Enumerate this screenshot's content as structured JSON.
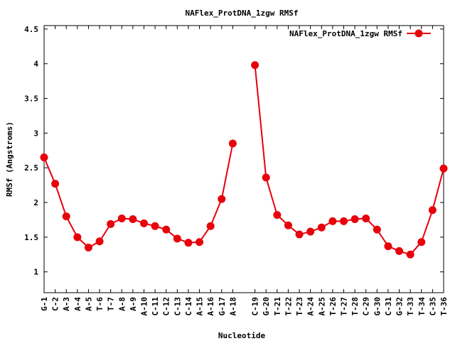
{
  "chart_data": {
    "type": "line",
    "title": "NAFlex_ProtDNA_1zgw RMSf",
    "xlabel": "Nucleotide",
    "ylabel": "RMSf (Angstroms)",
    "ylim": [
      0.7,
      4.55
    ],
    "yticks": [
      1,
      1.5,
      2,
      2.5,
      3,
      3.5,
      4,
      4.5
    ],
    "grid": false,
    "legend": "top-right",
    "color": "#e8000b",
    "series": [
      {
        "name": "NAFlex_ProtDNA_1zgw RMSf",
        "segments": [
          {
            "categories": [
              "G-1",
              "C-2",
              "A-3",
              "A-4",
              "A-5",
              "T-6",
              "T-7",
              "A-8",
              "A-9",
              "A-10",
              "C-11",
              "C-12",
              "C-13",
              "C-14",
              "A-15",
              "A-16",
              "G-17",
              "A-18"
            ],
            "values": [
              2.65,
              2.27,
              1.8,
              1.5,
              1.35,
              1.44,
              1.69,
              1.77,
              1.76,
              1.7,
              1.66,
              1.61,
              1.48,
              1.42,
              1.43,
              1.66,
              2.05,
              2.85
            ]
          },
          {
            "categories": [
              "C-19",
              "G-20",
              "T-21",
              "T-22",
              "T-23",
              "A-24",
              "A-25",
              "T-26",
              "T-27",
              "T-28",
              "C-29",
              "G-30",
              "C-31",
              "G-32",
              "T-33",
              "T-34",
              "C-35",
              "T-36"
            ],
            "values": [
              3.98,
              2.36,
              1.82,
              1.67,
              1.54,
              1.58,
              1.64,
              1.73,
              1.73,
              1.76,
              1.77,
              1.61,
              1.37,
              1.3,
              1.25,
              1.43,
              1.89,
              2.49
            ]
          }
        ]
      }
    ]
  }
}
